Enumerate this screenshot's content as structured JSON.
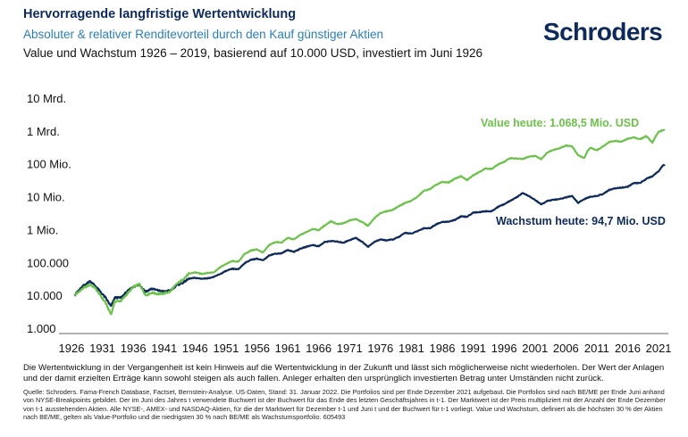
{
  "header": {
    "title": "Hervorragende langfristige Wertentwicklung",
    "subtitle": "Absoluter & relativer Renditevorteil durch den Kauf günstiger Aktien",
    "subtitle2": "Value und Wachstum 1926 – 2019, basierend auf 10.000 USD, investiert im Juni 1926",
    "logo": "Schroders"
  },
  "colors": {
    "title": "#0e2a5a",
    "subtitle": "#2a7fb8",
    "value": "#6cc24a",
    "growth": "#0e2a5a"
  },
  "chart_data": {
    "type": "line",
    "scale": "log",
    "ylim": [
      1000,
      10000000000
    ],
    "xlim": [
      1926,
      2022
    ],
    "yticks": [
      {
        "value": 10000000000,
        "label": "10 Mrd."
      },
      {
        "value": 1000000000,
        "label": "1 Mrd."
      },
      {
        "value": 100000000,
        "label": "100 Mio."
      },
      {
        "value": 10000000,
        "label": "10 Mio."
      },
      {
        "value": 1000000,
        "label": "1 Mio."
      },
      {
        "value": 100000,
        "label": "100.000"
      },
      {
        "value": 10000,
        "label": "10.000"
      },
      {
        "value": 1000,
        "label": "1.000"
      }
    ],
    "xticks": [
      1926,
      1931,
      1936,
      1941,
      1946,
      1951,
      1956,
      1961,
      1966,
      1971,
      1976,
      1981,
      1986,
      1991,
      1996,
      2001,
      2006,
      2011,
      2016,
      2021
    ],
    "grid": false,
    "series": [
      {
        "name": "Value",
        "color": "#6cc24a",
        "annotation": "Value heute: 1.068,5 Mio. USD",
        "points": [
          [
            1926.5,
            10000
          ],
          [
            1927,
            12000
          ],
          [
            1928,
            17000
          ],
          [
            1929,
            21000
          ],
          [
            1929.8,
            17000
          ],
          [
            1930.5,
            11000
          ],
          [
            1931.5,
            6000
          ],
          [
            1932.4,
            2600
          ],
          [
            1933,
            6500
          ],
          [
            1934,
            6800
          ],
          [
            1935,
            11000
          ],
          [
            1936,
            18000
          ],
          [
            1937,
            22000
          ],
          [
            1938,
            10000
          ],
          [
            1939,
            12000
          ],
          [
            1940,
            11000
          ],
          [
            1941,
            11500
          ],
          [
            1942,
            13000
          ],
          [
            1943,
            22000
          ],
          [
            1944,
            30000
          ],
          [
            1945,
            45000
          ],
          [
            1946,
            50000
          ],
          [
            1947,
            45000
          ],
          [
            1948,
            48000
          ],
          [
            1949,
            50000
          ],
          [
            1950,
            70000
          ],
          [
            1951,
            90000
          ],
          [
            1952,
            110000
          ],
          [
            1953,
            105000
          ],
          [
            1954,
            180000
          ],
          [
            1955,
            230000
          ],
          [
            1956,
            250000
          ],
          [
            1957,
            200000
          ],
          [
            1958,
            340000
          ],
          [
            1959,
            420000
          ],
          [
            1960,
            400000
          ],
          [
            1961,
            560000
          ],
          [
            1962,
            500000
          ],
          [
            1963,
            680000
          ],
          [
            1964,
            840000
          ],
          [
            1965,
            1050000
          ],
          [
            1966,
            960000
          ],
          [
            1967,
            1350000
          ],
          [
            1968,
            1800000
          ],
          [
            1969,
            1450000
          ],
          [
            1970,
            1550000
          ],
          [
            1971,
            1900000
          ],
          [
            1972,
            2100000
          ],
          [
            1973,
            1700000
          ],
          [
            1974,
            1300000
          ],
          [
            1975,
            2200000
          ],
          [
            1976,
            3200000
          ],
          [
            1977,
            3600000
          ],
          [
            1978,
            4000000
          ],
          [
            1979,
            5200000
          ],
          [
            1980,
            6500000
          ],
          [
            1981,
            7500000
          ],
          [
            1982,
            10000000
          ],
          [
            1983,
            15000000
          ],
          [
            1984,
            17000000
          ],
          [
            1985,
            23000000
          ],
          [
            1986,
            28000000
          ],
          [
            1987,
            27000000
          ],
          [
            1988,
            35000000
          ],
          [
            1989,
            42000000
          ],
          [
            1990,
            32000000
          ],
          [
            1991,
            45000000
          ],
          [
            1992,
            57000000
          ],
          [
            1993,
            72000000
          ],
          [
            1994,
            70000000
          ],
          [
            1995,
            95000000
          ],
          [
            1996,
            115000000
          ],
          [
            1997,
            150000000
          ],
          [
            1998,
            145000000
          ],
          [
            1999,
            140000000
          ],
          [
            2000,
            165000000
          ],
          [
            2001,
            175000000
          ],
          [
            2002,
            140000000
          ],
          [
            2003,
            220000000
          ],
          [
            2004,
            270000000
          ],
          [
            2005,
            300000000
          ],
          [
            2006,
            360000000
          ],
          [
            2007,
            340000000
          ],
          [
            2008,
            180000000
          ],
          [
            2009,
            150000000
          ],
          [
            2009.5,
            250000000
          ],
          [
            2010,
            310000000
          ],
          [
            2011,
            260000000
          ],
          [
            2012,
            340000000
          ],
          [
            2013,
            460000000
          ],
          [
            2014,
            500000000
          ],
          [
            2015,
            470000000
          ],
          [
            2016,
            580000000
          ],
          [
            2017,
            640000000
          ],
          [
            2018,
            560000000
          ],
          [
            2019,
            700000000
          ],
          [
            2020,
            450000000
          ],
          [
            2020.6,
            720000000
          ],
          [
            2021,
            930000000
          ],
          [
            2021.7,
            1060000000
          ],
          [
            2022,
            1068500000
          ]
        ]
      },
      {
        "name": "Wachstum",
        "color": "#0e2a5a",
        "annotation": "Wachstum heute: 94,7 Mio. USD",
        "points": [
          [
            1926.5,
            10000
          ],
          [
            1927,
            13000
          ],
          [
            1928,
            20000
          ],
          [
            1929,
            27000
          ],
          [
            1929.8,
            20000
          ],
          [
            1930.5,
            14000
          ],
          [
            1931.5,
            8500
          ],
          [
            1932.4,
            4600
          ],
          [
            1933,
            8500
          ],
          [
            1934,
            8500
          ],
          [
            1935,
            13000
          ],
          [
            1936,
            18000
          ],
          [
            1937,
            21000
          ],
          [
            1938,
            13000
          ],
          [
            1939,
            16000
          ],
          [
            1940,
            14000
          ],
          [
            1941,
            13000
          ],
          [
            1942,
            14000
          ],
          [
            1943,
            20000
          ],
          [
            1944,
            24000
          ],
          [
            1945,
            32000
          ],
          [
            1946,
            34000
          ],
          [
            1947,
            32000
          ],
          [
            1948,
            33000
          ],
          [
            1949,
            36000
          ],
          [
            1950,
            44000
          ],
          [
            1951,
            55000
          ],
          [
            1952,
            64000
          ],
          [
            1953,
            62000
          ],
          [
            1954,
            95000
          ],
          [
            1955,
            120000
          ],
          [
            1956,
            130000
          ],
          [
            1957,
            115000
          ],
          [
            1958,
            165000
          ],
          [
            1959,
            185000
          ],
          [
            1960,
            190000
          ],
          [
            1961,
            240000
          ],
          [
            1962,
            210000
          ],
          [
            1963,
            260000
          ],
          [
            1964,
            300000
          ],
          [
            1965,
            340000
          ],
          [
            1966,
            310000
          ],
          [
            1967,
            420000
          ],
          [
            1968,
            450000
          ],
          [
            1969,
            430000
          ],
          [
            1970,
            400000
          ],
          [
            1971,
            480000
          ],
          [
            1972,
            560000
          ],
          [
            1973,
            430000
          ],
          [
            1974,
            300000
          ],
          [
            1975,
            420000
          ],
          [
            1976,
            500000
          ],
          [
            1977,
            470000
          ],
          [
            1978,
            500000
          ],
          [
            1979,
            600000
          ],
          [
            1980,
            800000
          ],
          [
            1981,
            750000
          ],
          [
            1982,
            900000
          ],
          [
            1983,
            1100000
          ],
          [
            1984,
            1100000
          ],
          [
            1985,
            1450000
          ],
          [
            1986,
            1700000
          ],
          [
            1987,
            1750000
          ],
          [
            1988,
            1950000
          ],
          [
            1989,
            2500000
          ],
          [
            1990,
            2450000
          ],
          [
            1991,
            3300000
          ],
          [
            1992,
            3400000
          ],
          [
            1993,
            3600000
          ],
          [
            1994,
            3600000
          ],
          [
            1995,
            4900000
          ],
          [
            1996,
            5900000
          ],
          [
            1997,
            7500000
          ],
          [
            1998,
            9500000
          ],
          [
            1999,
            13000000
          ],
          [
            2000,
            10500000
          ],
          [
            2001,
            8000000
          ],
          [
            2002,
            5800000
          ],
          [
            2003,
            7500000
          ],
          [
            2004,
            8000000
          ],
          [
            2005,
            8500000
          ],
          [
            2006,
            9500000
          ],
          [
            2007,
            10500000
          ],
          [
            2008,
            6500000
          ],
          [
            2009,
            8500000
          ],
          [
            2010,
            10000000
          ],
          [
            2011,
            10500000
          ],
          [
            2012,
            12000000
          ],
          [
            2013,
            16000000
          ],
          [
            2014,
            18000000
          ],
          [
            2015,
            19000000
          ],
          [
            2016,
            20000000
          ],
          [
            2017,
            26000000
          ],
          [
            2018,
            26000000
          ],
          [
            2019,
            35000000
          ],
          [
            2020,
            42000000
          ],
          [
            2021,
            60000000
          ],
          [
            2021.7,
            90000000
          ],
          [
            2022,
            94700000
          ]
        ]
      }
    ]
  },
  "footer": {
    "disclaimer": "Die Wertentwicklung in der Vergangenheit ist kein Hinweis auf die Wertentwicklung in der Zukunft und lässt sich möglicherweise nicht wiederholen. Der Wert der Anlagen und der damit erzielten Erträge kann sowohl steigen als auch fallen. Anleger erhalten den ursprünglich investierten Betrag unter Umständen nicht zurück.",
    "source": "Quelle: Schroders. Fama-French Database, Factset, Bernstein-Analyse. US-Daten, Stand: 31. Januar 2022. Die Portfolios sind per Ende Dezember 2021 aufgebaut. Die Portfolios sind nach BE/ME per Ende Juni anhand von NYSE-Breakpoints gebildet. Der im Juni des Jahres t verwendete Buchwert ist der Buchwert für das Ende des letzten Geschäftsjahres in t-1. Der Marktwert ist der Preis multipliziert mit der Anzahl der Ende Dezember von t-1 ausstehenden Aktien. Alle NYSE-, AMEX- und NASDAQ-Aktien, für die der Marktwert für Dezember t-1 und Juni t und der Buchwert für t-1 vorliegt. Value und Wachstum, definiert als die höchsten 30 % der Aktien nach BE/ME, gelten als Value-Portfolio und die niedrigsten 30 % nach BE/ME als Wachstumsportfolio. 605493"
  }
}
